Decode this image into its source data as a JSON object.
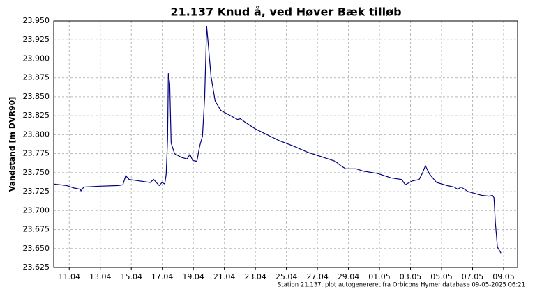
{
  "chart_data": {
    "type": "line",
    "title": "21.137  Knud å, ved Høver Bæk tilløb",
    "ylabel": "Vandstand [m DVR90]",
    "footer": "Station 21.137, plot autogenereret fra Orbicons Hymer database 09-05-2025 06:21",
    "grid": true,
    "xlim": [
      10,
      39.9
    ],
    "ylim": [
      23.625,
      23.95
    ],
    "xticks": [
      {
        "value": 11,
        "label": "11.04"
      },
      {
        "value": 13,
        "label": "13.04"
      },
      {
        "value": 15,
        "label": "15.04"
      },
      {
        "value": 17,
        "label": "17.04"
      },
      {
        "value": 19,
        "label": "19.04"
      },
      {
        "value": 21,
        "label": "21.04"
      },
      {
        "value": 23,
        "label": "23.04"
      },
      {
        "value": 25,
        "label": "25.04"
      },
      {
        "value": 27,
        "label": "27.04"
      },
      {
        "value": 29,
        "label": "29.04"
      },
      {
        "value": 31,
        "label": "01.05"
      },
      {
        "value": 33,
        "label": "03.05"
      },
      {
        "value": 35,
        "label": "05.05"
      },
      {
        "value": 37,
        "label": "07.05"
      },
      {
        "value": 39,
        "label": "09.05"
      }
    ],
    "yticks": [
      23.625,
      {
        "value": 23.65,
        "label": "23.650"
      },
      23.675,
      {
        "value": 23.7,
        "label": "23.700"
      },
      23.725,
      {
        "value": 23.75,
        "label": "23.750"
      },
      23.775,
      {
        "value": 23.8,
        "label": "23.800"
      },
      23.825,
      {
        "value": 23.85,
        "label": "23.850"
      },
      23.875,
      {
        "value": 23.9,
        "label": "23.900"
      },
      23.925,
      {
        "value": 23.95,
        "label": "23.950"
      }
    ],
    "series": [
      {
        "color": "#000080",
        "x": [
          10.0,
          10.81,
          11.26,
          11.71,
          11.76,
          11.94,
          12.84,
          14.19,
          14.46,
          14.64,
          14.86,
          15.54,
          16.22,
          16.44,
          16.8,
          16.98,
          17.16,
          17.25,
          17.34,
          17.39,
          17.48,
          17.57,
          17.79,
          18.24,
          18.6,
          18.78,
          18.96,
          19.23,
          19.41,
          19.59,
          19.73,
          19.86,
          19.95,
          20.14,
          20.41,
          20.77,
          21.4,
          21.85,
          22.03,
          22.3,
          22.97,
          23.65,
          24.55,
          25.45,
          26.35,
          27.25,
          28.15,
          28.51,
          28.83,
          29.5,
          29.95,
          30.86,
          31.76,
          32.43,
          32.66,
          33.11,
          33.56,
          33.78,
          33.96,
          34.23,
          34.68,
          35.36,
          35.81,
          36.04,
          36.26,
          36.71,
          37.61,
          38.06,
          38.29,
          38.38,
          38.47,
          38.6,
          38.83
        ],
        "values": [
          23.735,
          23.733,
          23.73,
          23.728,
          23.726,
          23.731,
          23.732,
          23.733,
          23.734,
          23.746,
          23.741,
          23.739,
          23.737,
          23.741,
          23.733,
          23.737,
          23.735,
          23.748,
          23.794,
          23.881,
          23.867,
          23.789,
          23.775,
          23.77,
          23.768,
          23.774,
          23.766,
          23.765,
          23.785,
          23.798,
          23.849,
          23.943,
          23.922,
          23.877,
          23.844,
          23.832,
          23.825,
          23.82,
          23.821,
          23.817,
          23.808,
          23.801,
          23.792,
          23.785,
          23.777,
          23.771,
          23.765,
          23.759,
          23.755,
          23.755,
          23.752,
          23.749,
          23.743,
          23.741,
          23.734,
          23.739,
          23.741,
          23.75,
          23.759,
          23.748,
          23.737,
          23.733,
          23.731,
          23.728,
          23.731,
          23.725,
          23.72,
          23.719,
          23.72,
          23.717,
          23.684,
          23.652,
          23.644
        ]
      }
    ]
  }
}
